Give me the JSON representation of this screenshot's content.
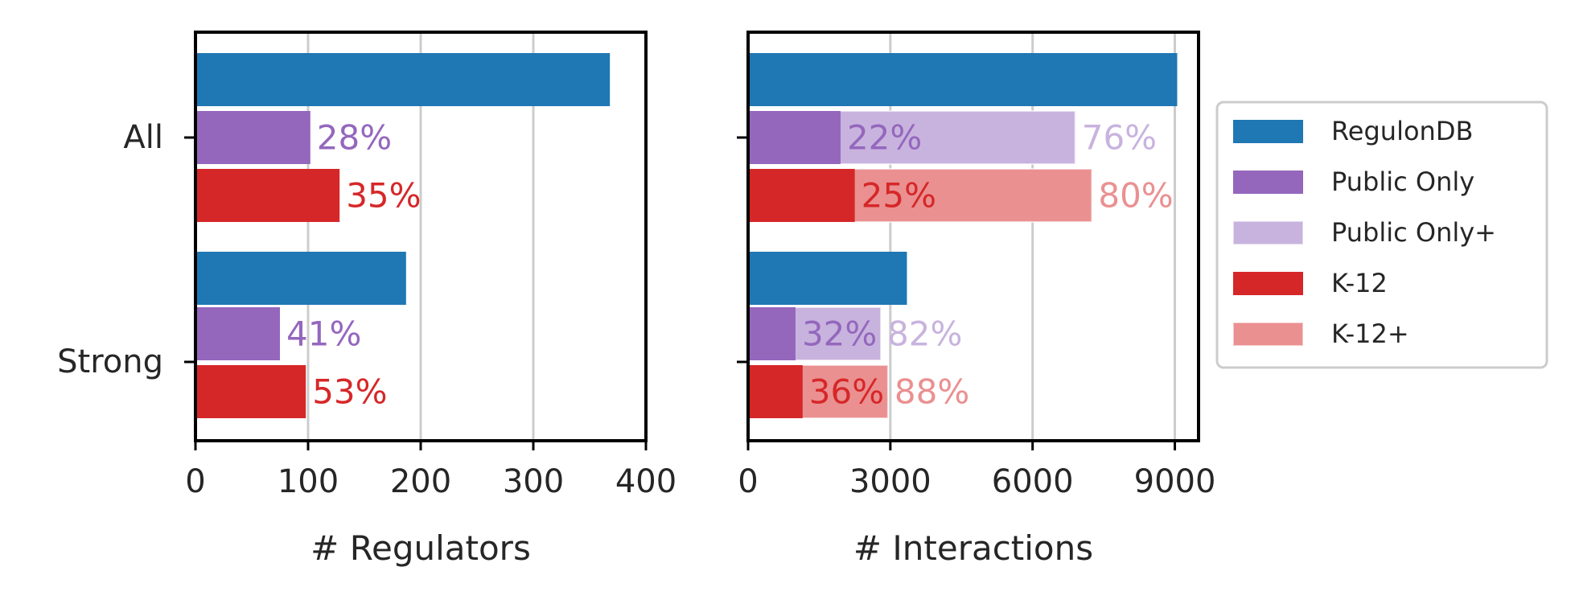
{
  "chart_data": [
    {
      "type": "bar",
      "orientation": "horizontal",
      "categories": [
        "All",
        "Strong"
      ],
      "xlabel": "# Regulators",
      "xlim": [
        0,
        400
      ],
      "xticks": [
        0,
        100,
        200,
        300,
        400
      ],
      "grid": "vertical",
      "series": [
        {
          "name": "RegulonDB",
          "color": "#1f77b4",
          "values": [
            368,
            187
          ]
        },
        {
          "name": "Public Only",
          "color": "#9467bd",
          "values": [
            102,
            75
          ],
          "labels": [
            "28%",
            "41%"
          ]
        },
        {
          "name": "K-12",
          "color": "#d62728",
          "values": [
            128,
            98
          ],
          "labels": [
            "35%",
            "53%"
          ]
        }
      ]
    },
    {
      "type": "bar",
      "orientation": "horizontal",
      "categories": [
        "All",
        "Strong"
      ],
      "xlabel": "# Interactions",
      "xlim": [
        0,
        9500
      ],
      "xticks": [
        0,
        3000,
        6000,
        9000
      ],
      "grid": "vertical",
      "series": [
        {
          "name": "RegulonDB",
          "color": "#1f77b4",
          "values": [
            9050,
            3350
          ]
        },
        {
          "name": "Public Only",
          "color": "#9467bd",
          "values": [
            1950,
            1000
          ],
          "labels": [
            "22%",
            "32%"
          ]
        },
        {
          "name": "Public Only+",
          "color": "#c8b3de",
          "values": [
            6900,
            2800
          ],
          "labels": [
            "76%",
            "82%"
          ]
        },
        {
          "name": "K-12",
          "color": "#d62728",
          "values": [
            2250,
            1150
          ],
          "labels": [
            "25%",
            "36%"
          ]
        },
        {
          "name": "K-12+",
          "color": "#ea9091",
          "values": [
            7250,
            2950
          ],
          "labels": [
            "80%",
            "88%"
          ]
        }
      ]
    }
  ],
  "legend": {
    "position": "right",
    "entries": [
      {
        "label": "RegulonDB",
        "color": "#1f77b4"
      },
      {
        "label": "Public Only",
        "color": "#9467bd"
      },
      {
        "label": "Public Only+",
        "color": "#c8b3de"
      },
      {
        "label": "K-12",
        "color": "#d62728"
      },
      {
        "label": "K-12+",
        "color": "#ea9091"
      }
    ]
  }
}
